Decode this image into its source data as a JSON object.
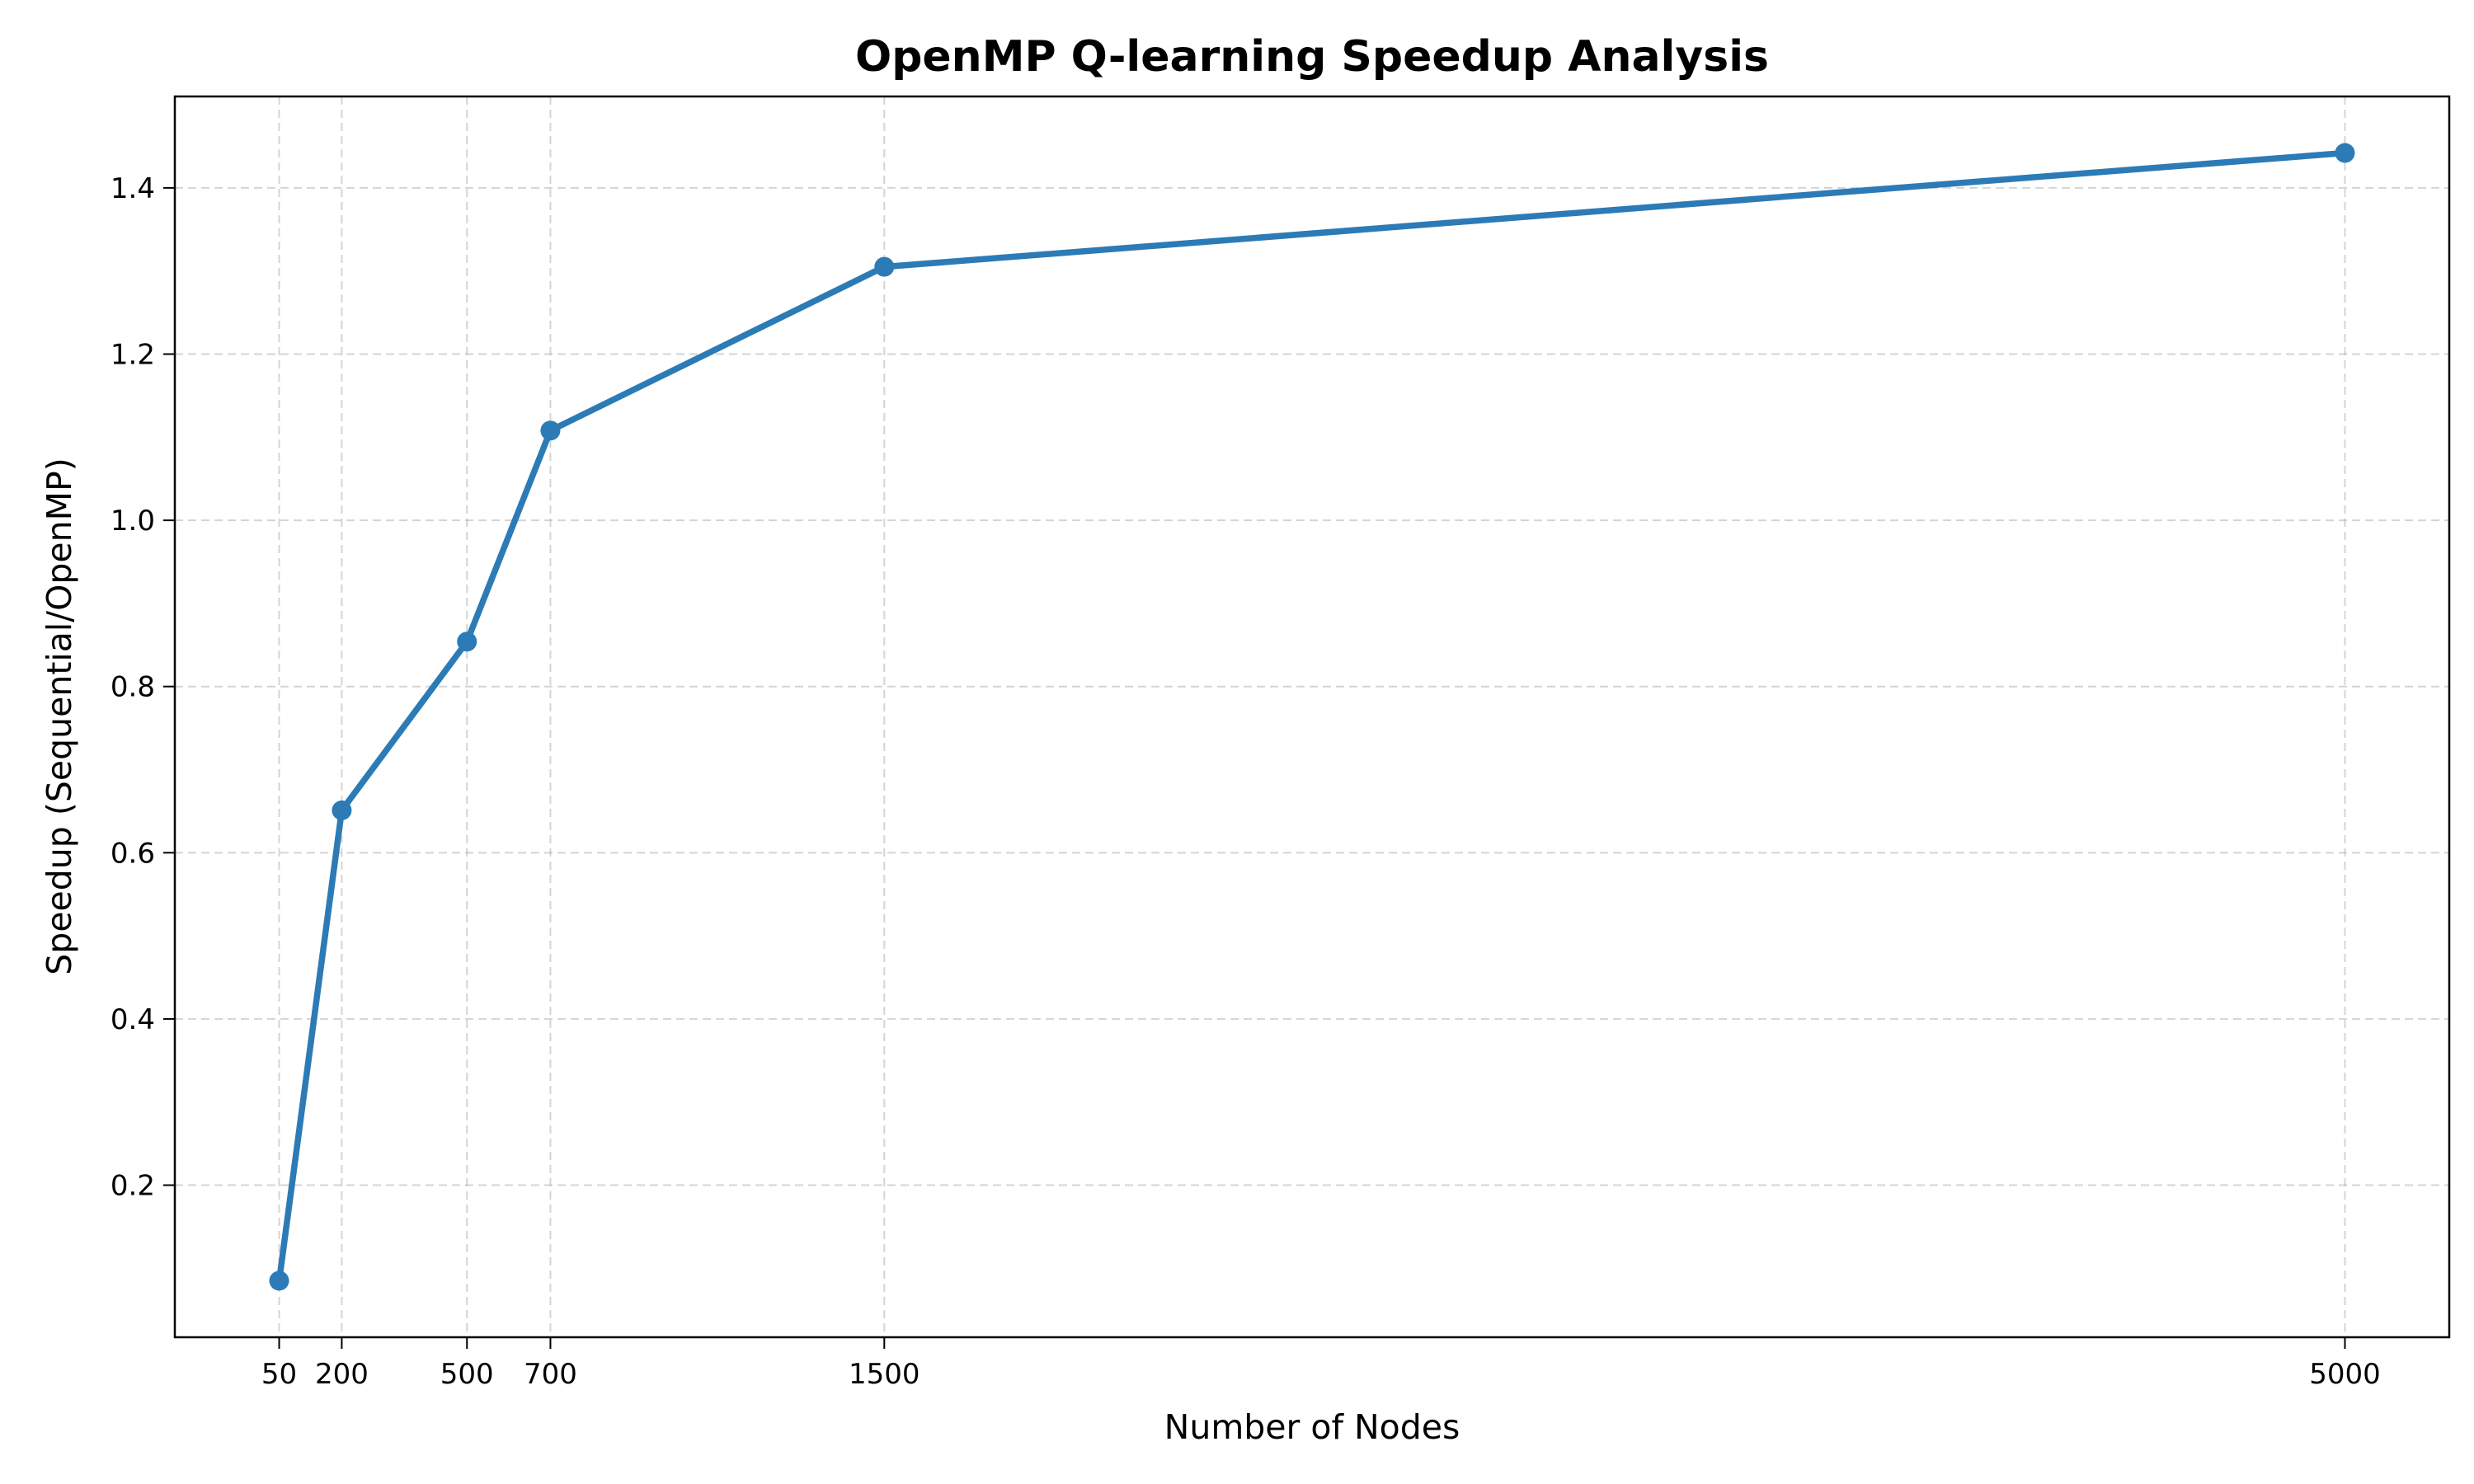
{
  "chart_data": {
    "type": "line",
    "title": "OpenMP Q-learning Speedup Analysis",
    "xlabel": "Number of Nodes",
    "ylabel": "Speedup (Sequential/OpenMP)",
    "x": [
      50,
      200,
      500,
      700,
      1500,
      5000
    ],
    "x_tick_labels": [
      "50",
      "200",
      "500",
      "700",
      "1500",
      "5000"
    ],
    "series": [
      {
        "values": [
          0.085,
          0.651,
          0.854,
          1.108,
          1.305,
          1.442
        ],
        "color": "#2c7bb6",
        "marker": "circle"
      }
    ],
    "y_ticks": [
      0.2,
      0.4,
      0.6,
      0.8,
      1.0,
      1.2,
      1.4
    ],
    "y_tick_labels": [
      "0.2",
      "0.4",
      "0.6",
      "0.8",
      "1.0",
      "1.2",
      "1.4"
    ],
    "xlim": [
      -200,
      5250
    ],
    "ylim": [
      0.017,
      1.51
    ],
    "grid": true,
    "legend": "none"
  }
}
